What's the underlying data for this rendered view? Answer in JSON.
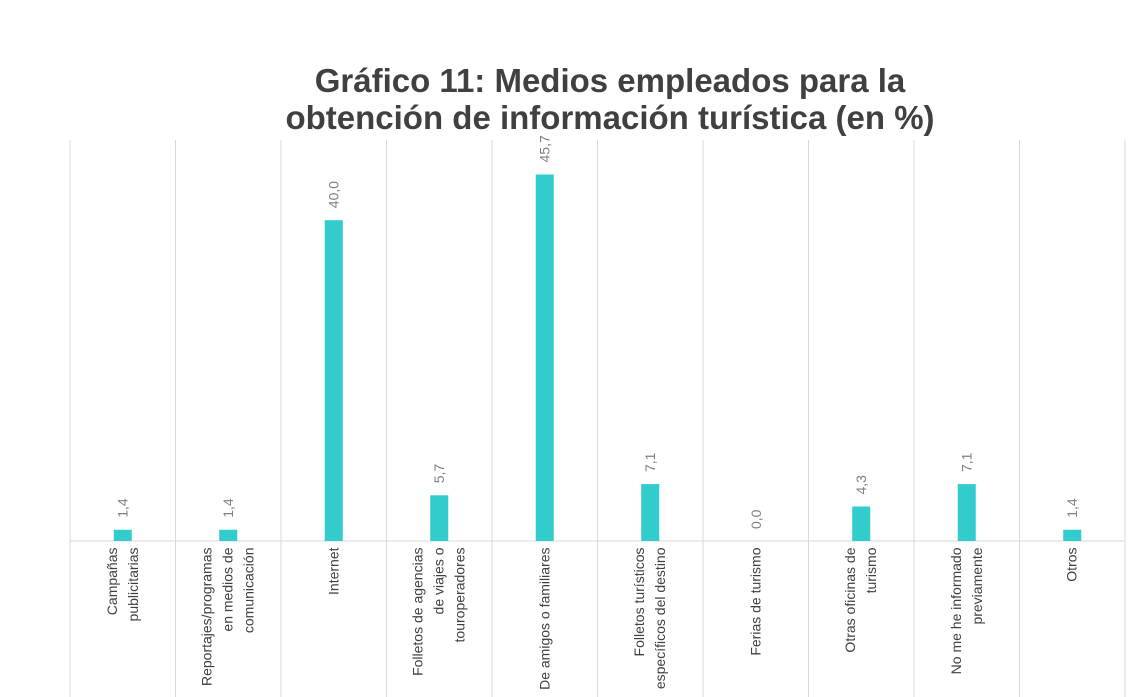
{
  "chart_data": {
    "type": "bar",
    "title": "Gráfico 11: Medios empleados para la obtención de información turística (en %)",
    "categories": [
      "Campañas publicitarias",
      "Reportajes/programas en medios de comunicación",
      "Internet",
      "Folletos de agencias de viajes o touroperadores",
      "De amigos o familiares",
      "Folletos turísticos específicos del destino",
      "Ferias de turismo",
      "Otras oficinas de turismo",
      "No me he informado previamente",
      "Otros"
    ],
    "values": [
      1.4,
      1.4,
      40.0,
      5.7,
      45.7,
      7.1,
      0.0,
      4.3,
      7.1,
      1.4
    ],
    "value_labels": [
      "1,4",
      "1,4",
      "40,0",
      "5,7",
      "45,7",
      "7,1",
      "0,0",
      "4,3",
      "7,1",
      "1,4"
    ],
    "color": "#33cccc",
    "ylim": [
      0,
      50
    ],
    "grid": true
  }
}
